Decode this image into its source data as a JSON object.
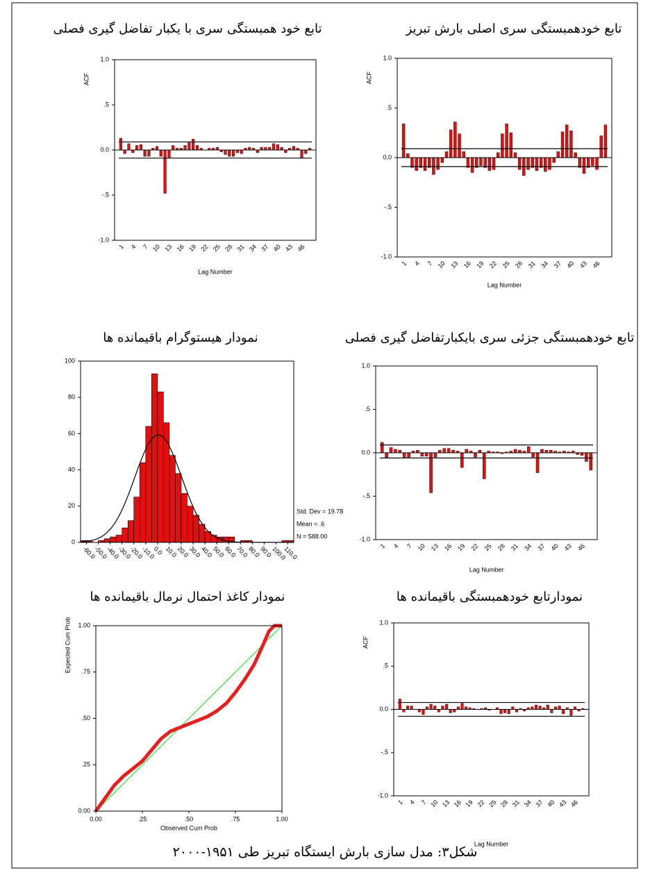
{
  "caption": "شکل۳: مدل سازی بارش ایستگاه تبریز طی ۱۹۵۱-۲۰۰۰",
  "chart_data": [
    {
      "type": "bar",
      "title": "تابع خودهمبستگی سری اصلی بارش تبریز",
      "ylabel": "ACF",
      "xlabel": "Lag Number",
      "color": "#cc1a1a",
      "categories": [
        1,
        null,
        null,
        4,
        null,
        null,
        7,
        null,
        null,
        10,
        null,
        null,
        13,
        null,
        null,
        16,
        null,
        null,
        19,
        null,
        null,
        22,
        null,
        null,
        25,
        null,
        null,
        28,
        null,
        null,
        31,
        null,
        null,
        34,
        null,
        null,
        37,
        null,
        null,
        40,
        null,
        null,
        43,
        null,
        null,
        46,
        null,
        null
      ],
      "values": [
        0.34,
        0.04,
        -0.1,
        -0.13,
        -0.1,
        -0.13,
        -0.1,
        -0.17,
        -0.12,
        -0.05,
        0.06,
        0.28,
        0.36,
        0.24,
        0.06,
        -0.1,
        -0.15,
        -0.1,
        -0.08,
        -0.1,
        -0.13,
        -0.12,
        0.05,
        0.24,
        0.34,
        0.25,
        0.05,
        -0.12,
        -0.18,
        -0.12,
        -0.1,
        -0.13,
        -0.1,
        -0.14,
        -0.12,
        -0.05,
        0.06,
        0.26,
        0.33,
        0.27,
        0.05,
        -0.1,
        -0.16,
        -0.1,
        -0.08,
        -0.12,
        0.22,
        0.33
      ],
      "confidence_limits": [
        0.09,
        -0.09
      ],
      "ylim": [
        -1,
        1
      ],
      "yticks": [
        {
          "value": 1,
          "label": "1.0"
        },
        {
          "value": 0.5,
          "label": ".5"
        },
        {
          "value": 0,
          "label": "0.0"
        },
        {
          "value": -0.5,
          "label": "-.5"
        },
        {
          "value": -1,
          "label": "-1.0"
        }
      ]
    },
    {
      "type": "bar",
      "title": "تابع خود همبستگی سری با یکبار تفاضل گیری فصلی",
      "ylabel": "ACF",
      "xlabel": "Lag Number",
      "color": "#cc1a1a",
      "categories": [
        1,
        null,
        null,
        4,
        null,
        null,
        7,
        null,
        null,
        10,
        null,
        null,
        13,
        null,
        null,
        16,
        null,
        null,
        19,
        null,
        null,
        22,
        null,
        null,
        25,
        null,
        null,
        28,
        null,
        null,
        31,
        null,
        null,
        34,
        null,
        null,
        37,
        null,
        null,
        40,
        null,
        null,
        43,
        null,
        null,
        46,
        null,
        null
      ],
      "values": [
        0.13,
        -0.04,
        0.07,
        -0.03,
        0.05,
        0.06,
        -0.07,
        -0.07,
        0.02,
        0.04,
        -0.07,
        -0.48,
        -0.09,
        0.05,
        0.02,
        0.02,
        0.05,
        0.09,
        0.12,
        0.05,
        0.02,
        0,
        0.02,
        0.02,
        0.03,
        -0.02,
        -0.05,
        -0.07,
        -0.07,
        -0.03,
        -0.04,
        0.02,
        0.03,
        0.02,
        -0.03,
        0.03,
        0.03,
        0.03,
        0.07,
        0.06,
        0.03,
        -0.03,
        0.02,
        0.04,
        0.02,
        -0.09,
        -0.04,
        0.02
      ],
      "confidence_limits": [
        0.09,
        -0.09
      ],
      "ylim": [
        -1,
        1
      ],
      "yticks": [
        {
          "value": 1,
          "label": "1.0"
        },
        {
          "value": 0.5,
          "label": ".5"
        },
        {
          "value": 0,
          "label": "0.0"
        },
        {
          "value": -0.5,
          "label": "-.5"
        },
        {
          "value": -1,
          "label": "-1.0"
        }
      ]
    },
    {
      "type": "bar",
      "title": "تابع خودهمبستگی جزئی سری بایکبارتفاضل گیری فصلی",
      "xlabel": "Lag Number",
      "color": "#cc1a1a",
      "categories": [
        1,
        null,
        null,
        4,
        null,
        null,
        7,
        null,
        null,
        10,
        null,
        null,
        13,
        null,
        null,
        16,
        null,
        null,
        19,
        null,
        null,
        22,
        null,
        null,
        25,
        null,
        null,
        28,
        null,
        null,
        31,
        null,
        null,
        34,
        null,
        null,
        37,
        null,
        null,
        40,
        null,
        null,
        43,
        null,
        null,
        46,
        null,
        null
      ],
      "values": [
        0.12,
        -0.06,
        0.06,
        0.04,
        0.03,
        -0.06,
        -0.06,
        0.02,
        0.03,
        -0.04,
        -0.04,
        -0.46,
        -0.05,
        0.03,
        0.05,
        0.05,
        0.03,
        0.02,
        -0.17,
        0.04,
        0.02,
        -0.05,
        0.03,
        -0.3,
        0.02,
        0.01,
        0.01,
        -0.01,
        0.01,
        0.02,
        0.04,
        0.03,
        0.02,
        0.07,
        -0.05,
        -0.23,
        0.04,
        0.03,
        0.03,
        0.02,
        0.01,
        0.02,
        0.01,
        0.02,
        -0.02,
        -0.03,
        -0.1,
        -0.2
      ],
      "confidence_limits": [
        0.09,
        -0.06
      ],
      "ylim": [
        -1,
        1
      ],
      "yticks": [
        {
          "value": 1,
          "label": "1.0"
        },
        {
          "value": 0.5,
          "label": ".5"
        },
        {
          "value": 0,
          "label": "0.0"
        },
        {
          "value": -0.5,
          "label": "-.5"
        },
        {
          "value": -1,
          "label": "-1.0"
        }
      ]
    },
    {
      "type": "histogram",
      "title": "نمودار هیستوگرام باقیمانده ها",
      "color": "#e01010",
      "bins": [
        -65,
        -60,
        -55,
        -50,
        -45,
        -40,
        -35,
        -30,
        -25,
        -20,
        -15,
        -10,
        -5,
        0,
        5,
        10,
        15,
        20,
        25,
        30,
        35,
        40,
        45,
        50,
        55,
        60,
        65,
        70,
        75,
        80,
        85,
        90,
        95,
        100,
        105,
        110,
        115
      ],
      "values": [
        1,
        1,
        0,
        1,
        2,
        3,
        4,
        8,
        12,
        25,
        44,
        64,
        93,
        83,
        66,
        48,
        38,
        27,
        20,
        15,
        10,
        6,
        4,
        3,
        3,
        3,
        0,
        1,
        1,
        0,
        0,
        0,
        0,
        0,
        1,
        1
      ],
      "stats": {
        "std_dev": {
          "value": 19.78,
          "label": "Std. Dev = 19.78"
        },
        "mean": {
          "value": 0.6,
          "label": "Mean = .6"
        },
        "n": {
          "value": 588,
          "label": "N = 588.00"
        }
      },
      "xlim": [
        -65,
        115
      ],
      "xticks": [
        {
          "value": -60,
          "label": "-60.0"
        },
        {
          "value": -50,
          "label": "-50.0"
        },
        {
          "value": -40,
          "label": "-40.0"
        },
        {
          "value": -30,
          "label": "-30.0"
        },
        {
          "value": -20,
          "label": "-20.0"
        },
        {
          "value": -10,
          "label": "-10.0"
        },
        {
          "value": 0,
          "label": "0.0"
        },
        {
          "value": 10,
          "label": "10.0"
        },
        {
          "value": 20,
          "label": "20.0"
        },
        {
          "value": 30,
          "label": "30.0"
        },
        {
          "value": 40,
          "label": "40.0"
        },
        {
          "value": 50,
          "label": "50.0"
        },
        {
          "value": 60,
          "label": "60.0"
        },
        {
          "value": 70,
          "label": "70.0"
        },
        {
          "value": 80,
          "label": "80.0"
        },
        {
          "value": 90,
          "label": "90.0"
        },
        {
          "value": 100,
          "label": "100.0"
        },
        {
          "value": 110,
          "label": "110.0"
        }
      ],
      "ylim": [
        0,
        100
      ],
      "yticks": [
        0,
        20,
        40,
        60,
        80,
        100
      ]
    },
    {
      "type": "line",
      "title": "نمودار کاغذ احتمال نرمال باقیمانده ها",
      "xlabel": "Observed Cum Prob",
      "ylabel": "Expected Cum Prob",
      "color": "#e52020",
      "reference_color": "#33dd33",
      "x": [
        0,
        0.05,
        0.1,
        0.15,
        0.2,
        0.25,
        0.3,
        0.35,
        0.4,
        0.45,
        0.5,
        0.55,
        0.6,
        0.65,
        0.7,
        0.75,
        0.8,
        0.85,
        0.9,
        0.93,
        0.96,
        1
      ],
      "values": [
        0,
        0.07,
        0.14,
        0.19,
        0.23,
        0.27,
        0.33,
        0.39,
        0.43,
        0.45,
        0.47,
        0.49,
        0.51,
        0.54,
        0.58,
        0.64,
        0.71,
        0.79,
        0.9,
        0.97,
        1,
        1
      ],
      "xlim": [
        0,
        1
      ],
      "ylim": [
        0,
        1
      ],
      "xticks": [
        {
          "value": 0,
          "label": "0.00"
        },
        {
          "value": 0.25,
          "label": ".25"
        },
        {
          "value": 0.5,
          "label": ".50"
        },
        {
          "value": 0.75,
          "label": ".75"
        },
        {
          "value": 1,
          "label": "1.00"
        }
      ],
      "yticks": [
        {
          "value": 0,
          "label": "0.00"
        },
        {
          "value": 0.25,
          "label": ".25"
        },
        {
          "value": 0.5,
          "label": ".50"
        },
        {
          "value": 0.75,
          "label": ".75"
        },
        {
          "value": 1,
          "label": "1.00"
        }
      ]
    },
    {
      "type": "bar",
      "title": "نمودارتابع خودهمبستگی باقیمانده ها",
      "ylabel": "ACF",
      "xlabel": "Lag Number",
      "color": "#cc1a1a",
      "categories": [
        1,
        null,
        null,
        4,
        null,
        null,
        7,
        null,
        null,
        10,
        null,
        null,
        13,
        null,
        null,
        16,
        null,
        null,
        19,
        null,
        null,
        22,
        null,
        null,
        25,
        null,
        null,
        28,
        null,
        null,
        31,
        null,
        null,
        34,
        null,
        null,
        37,
        null,
        null,
        40,
        null,
        null,
        43,
        null,
        null,
        46,
        null,
        null
      ],
      "values": [
        0.12,
        -0.03,
        0.04,
        0.04,
        0,
        -0.03,
        -0.06,
        0.03,
        0.06,
        0.04,
        -0.03,
        0.04,
        0.06,
        -0.04,
        -0.03,
        0.03,
        0.07,
        0.03,
        0.02,
        0.01,
        0,
        0.01,
        0.02,
        -0.01,
        0,
        0.02,
        -0.05,
        -0.04,
        -0.05,
        0.03,
        -0.03,
        0.01,
        -0.02,
        0.02,
        0.03,
        0.05,
        0.04,
        0.02,
        0.05,
        -0.04,
        0.03,
        0.04,
        -0.05,
        0.02,
        -0.07,
        0.03,
        -0.02,
        0.01
      ],
      "confidence_limits": [
        0.08,
        -0.08
      ],
      "ylim": [
        -1,
        1
      ],
      "yticks": [
        {
          "value": 1,
          "label": "1.0"
        },
        {
          "value": 0.5,
          "label": ".5"
        },
        {
          "value": 0,
          "label": "0.0"
        },
        {
          "value": -0.5,
          "label": "-.5"
        },
        {
          "value": -1,
          "label": "-1.0"
        }
      ]
    }
  ]
}
